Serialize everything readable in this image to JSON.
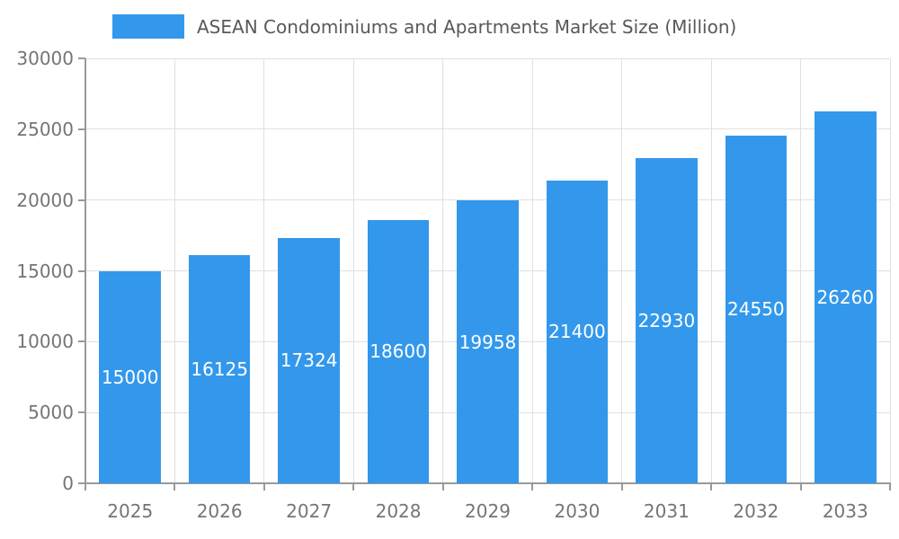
{
  "chart_data": {
    "type": "bar",
    "title": "ASEAN Condominiums and Apartments Market Size (Million)",
    "categories": [
      "2025",
      "2026",
      "2027",
      "2028",
      "2029",
      "2030",
      "2031",
      "2032",
      "2033"
    ],
    "values": [
      15000,
      16125,
      17324,
      18600,
      19958,
      21400,
      22930,
      24550,
      26260
    ],
    "ylim": [
      0,
      30000
    ],
    "yticks": [
      0,
      5000,
      10000,
      15000,
      20000,
      25000,
      30000
    ],
    "xlabel": "",
    "ylabel": "",
    "grid": true,
    "legend_position": "top",
    "bar_color": "#3398EB",
    "bar_label_color": "#FFFFFF",
    "grid_color": "#E0E0E0",
    "axis_color": "#999999",
    "tick_label_color": "#757575",
    "title_color": "#595959"
  }
}
